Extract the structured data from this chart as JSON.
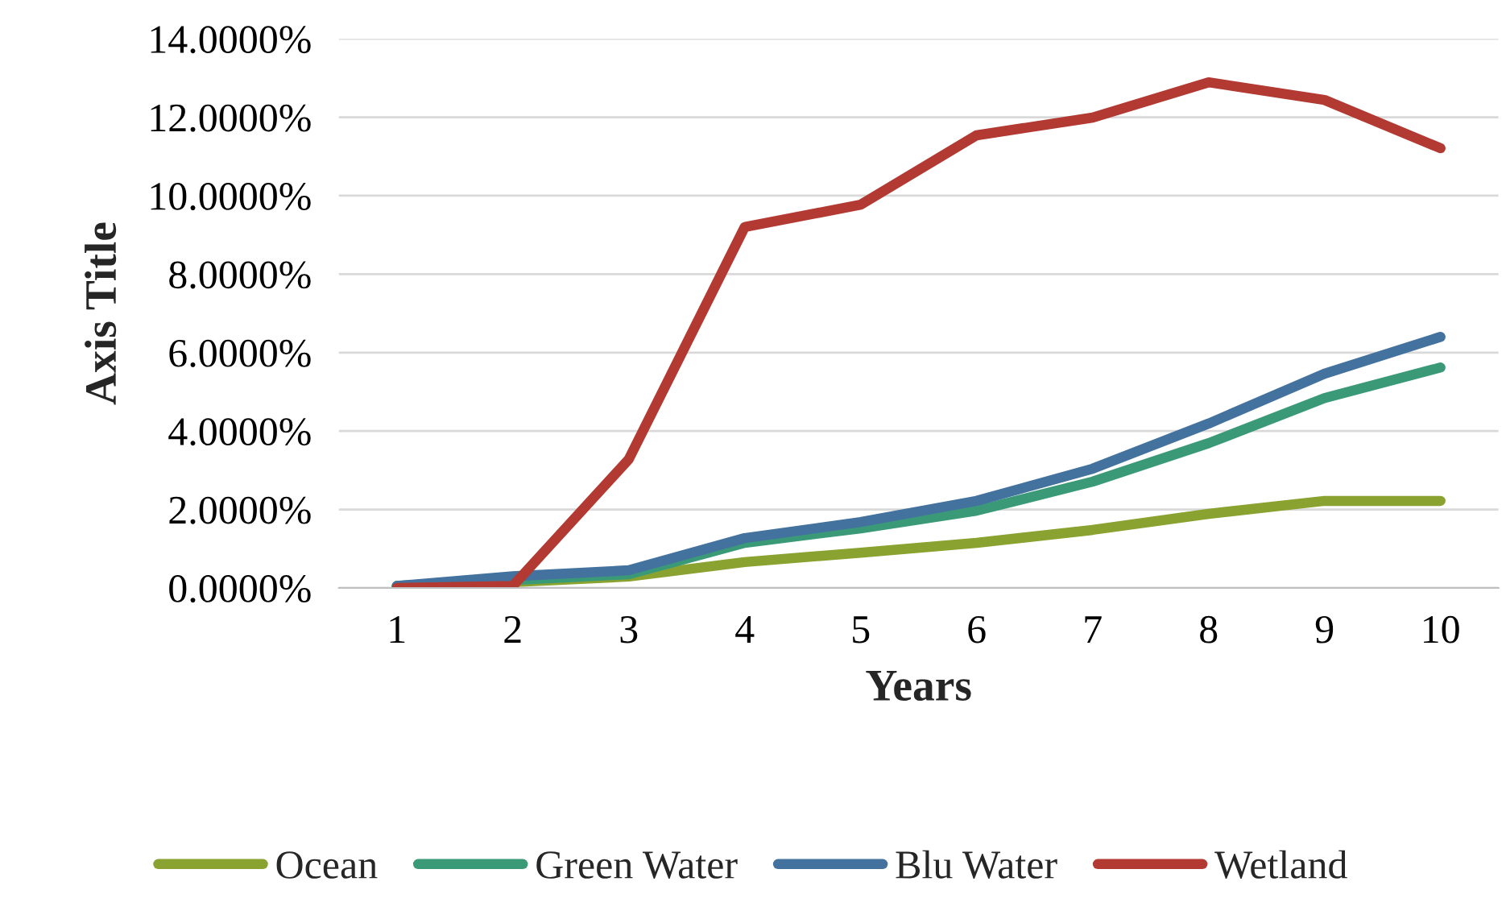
{
  "chart_data": {
    "type": "line",
    "xlabel": "Years",
    "ylabel": "Axis Title",
    "categories": [
      "1",
      "2",
      "3",
      "4",
      "5",
      "6",
      "7",
      "8",
      "9",
      "10"
    ],
    "series": [
      {
        "name": "Ocean",
        "color": "#8aa22f",
        "values": [
          0.05,
          0.15,
          0.29,
          0.66,
          0.9,
          1.15,
          1.48,
          1.89,
          2.22,
          2.22
        ]
      },
      {
        "name": "Green Water",
        "color": "#3a9a78",
        "values": [
          0.05,
          0.2,
          0.35,
          1.15,
          1.52,
          1.97,
          2.71,
          3.69,
          4.84,
          5.62
        ]
      },
      {
        "name": "Blu Water",
        "color": "#43729e",
        "values": [
          0.05,
          0.3,
          0.45,
          1.27,
          1.68,
          2.22,
          3.04,
          4.19,
          5.46,
          6.4
        ]
      },
      {
        "name": "Wetland",
        "color": "#b23a32",
        "values": [
          0.0,
          0.05,
          3.28,
          9.2,
          9.77,
          11.54,
          11.99,
          12.89,
          12.44,
          11.21
        ]
      }
    ],
    "ylim": [
      0,
      14
    ],
    "yticks": [
      {
        "value": 0,
        "label": "0.0000%"
      },
      {
        "value": 2,
        "label": "2.0000%"
      },
      {
        "value": 4,
        "label": "4.0000%"
      },
      {
        "value": 6,
        "label": "6.0000%"
      },
      {
        "value": 8,
        "label": "8.0000%"
      },
      {
        "value": 10,
        "label": "10.0000%"
      },
      {
        "value": 12,
        "label": "12.0000%"
      },
      {
        "value": 14,
        "label": "14.0000%"
      }
    ],
    "grid": "y",
    "legend": "bottom",
    "marker": "none",
    "line_style": "solid"
  }
}
